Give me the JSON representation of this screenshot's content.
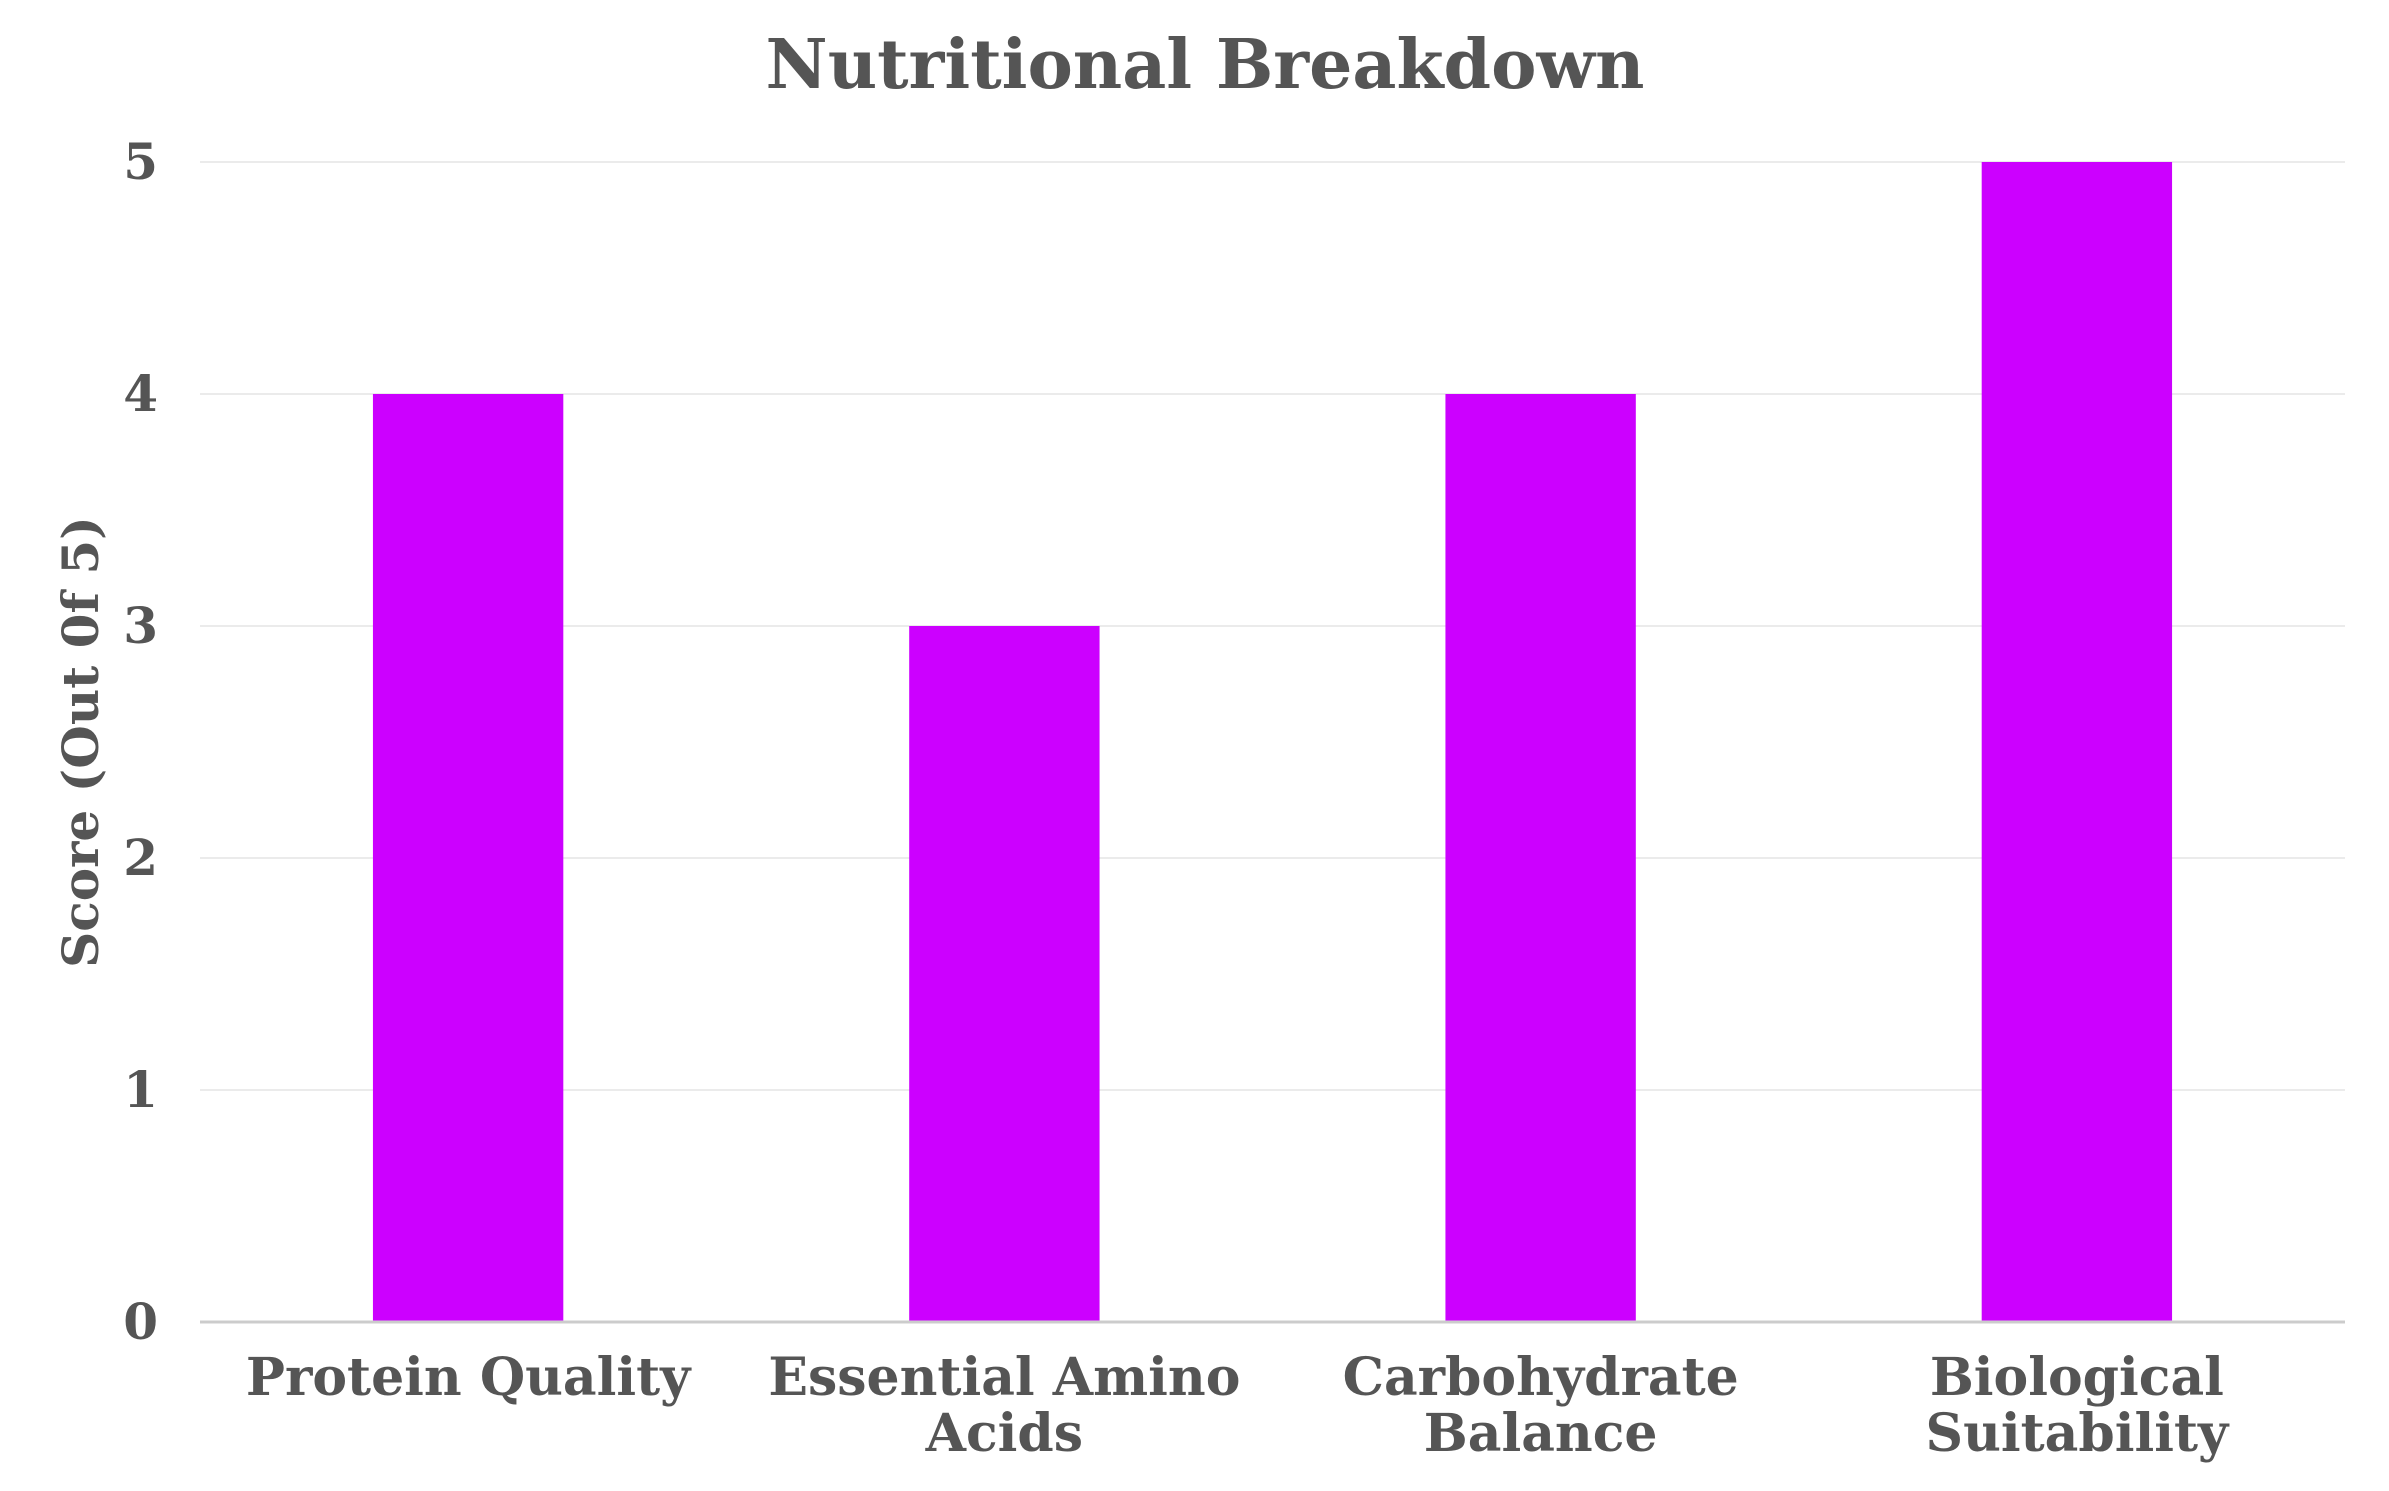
{
  "chart_data": {
    "type": "bar",
    "title": "Nutritional Breakdown",
    "xlabel": "",
    "ylabel": "Score (Out 0f 5)",
    "categories": [
      "Protein Quality",
      "Essential Amino Acids",
      "Carbohydrate Balance",
      "Biological Suitability"
    ],
    "category_lines": [
      [
        "Protein Quality"
      ],
      [
        "Essential Amino",
        "Acids"
      ],
      [
        "Carbohydrate",
        "Balance"
      ],
      [
        "Biological",
        "Suitability"
      ]
    ],
    "values": [
      4,
      3,
      4,
      5
    ],
    "ylim": [
      0,
      5
    ],
    "yticks": [
      0,
      1,
      2,
      3,
      4,
      5
    ],
    "grid": true,
    "legend": "none",
    "colors": {
      "bar": "#cc00ff",
      "text": "#555555",
      "grid": "#ebebeb",
      "axis": "#cccccc"
    }
  }
}
